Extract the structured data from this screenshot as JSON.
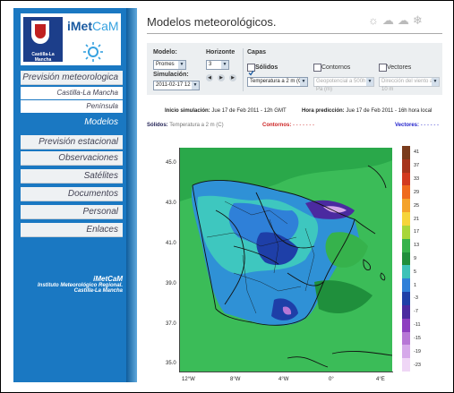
{
  "logo": {
    "name_main": "iMet",
    "name_accent": "CaM",
    "region": "Castilla-La Mancha"
  },
  "nav": {
    "items": [
      {
        "label": "Previsión meteorologica",
        "type": "main"
      },
      {
        "label": "Castilla-La Mancha",
        "type": "sub"
      },
      {
        "label": "Península",
        "type": "sub"
      },
      {
        "label": "Modelos",
        "type": "active"
      },
      {
        "label": "Previsión estacional",
        "type": "main"
      },
      {
        "label": "Observaciones",
        "type": "main"
      },
      {
        "label": "Satélites",
        "type": "main"
      },
      {
        "label": "Documentos",
        "type": "main"
      },
      {
        "label": "Personal",
        "type": "main"
      },
      {
        "label": "Enlaces",
        "type": "main"
      }
    ]
  },
  "footer": {
    "title": "iMetCaM",
    "line1": "Instituto Meteorológico Regional.",
    "line2": "Castilla-La Mancha"
  },
  "page": {
    "title": "Modelos meteorológicos."
  },
  "controls": {
    "modelo_label": "Modelo:",
    "modelo_value": "Promes",
    "simulacion_label": "Simulación:",
    "simulacion_value": "2011-02-17 12",
    "horizonte_label": "Horizonte",
    "horizonte_value": "3",
    "capas_label": "Capas",
    "solidos_label": "Sólidos",
    "contornos_label": "Contornos",
    "vectores_label": "Vectores",
    "solidos_select": "Temperatura a 2 m (C)",
    "contornos_select": "Geopotencial a 500h Pa (m)",
    "vectores_select": "Dirección del viento a 10 m"
  },
  "info": {
    "inicio_label": "Inicio simulación:",
    "inicio_value": "Jue 17 de Feb 2011 - 12h GMT",
    "hora_label": "Hora predicción:",
    "hora_value": "Jue 17 de Feb 2011 - 16h hora local",
    "solidos_label": "Sólidos:",
    "solidos_value": "Temperatura a 2 m (C)",
    "contornos_label": "Contornos:",
    "contornos_value": "- - - - - - -",
    "vectores_label": "Vectores:",
    "vectores_value": "- - - - - -"
  },
  "map": {
    "lat_labels": [
      "45.0",
      "43.0",
      "41.0",
      "39.0",
      "37.0",
      "35.0"
    ],
    "lon_labels": [
      "12°W",
      "8°W",
      "4°W",
      "0°",
      "4°E"
    ]
  },
  "scale": {
    "labels": [
      "41",
      "37",
      "33",
      "29",
      "25",
      "21",
      "17",
      "13",
      "9",
      "5",
      "1",
      "-3",
      "-7",
      "-11",
      "-15",
      "-19",
      "-23"
    ],
    "colors": [
      "#7a3b1c",
      "#a6341c",
      "#d23a1f",
      "#ef6a1d",
      "#f4a22a",
      "#f6d43a",
      "#a8d63a",
      "#36b24c",
      "#1f8f3c",
      "#3cc2b8",
      "#2f80d8",
      "#1e3fa8",
      "#4b2aa0",
      "#8e3fc0",
      "#b777d6",
      "#d6a9ea",
      "#efd6f6"
    ]
  }
}
